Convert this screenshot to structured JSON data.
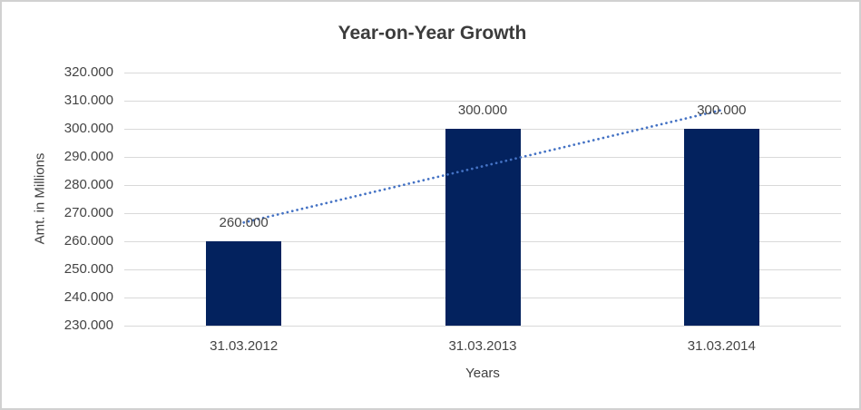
{
  "chart_data": {
    "type": "bar",
    "title": "Year-on-Year Growth",
    "xlabel": "Years",
    "ylabel": "Amt. in Millions",
    "categories": [
      "31.03.2012",
      "31.03.2013",
      "31.03.2014"
    ],
    "values": [
      260000,
      300000,
      300000
    ],
    "data_labels": [
      "260.000",
      "300.000",
      "300.000"
    ],
    "ylim": [
      230000,
      320000
    ],
    "ytick_step": 10000,
    "ytick_labels": [
      "230.000",
      "240.000",
      "250.000",
      "260.000",
      "270.000",
      "280.000",
      "290.000",
      "300.000",
      "310.000",
      "320.000"
    ],
    "grid": true,
    "legend": false,
    "trendline": {
      "type": "linear",
      "style": "dotted",
      "endpoints_value": [
        266667,
        306667
      ]
    },
    "colors": {
      "bar": "#03225E",
      "trendline": "#4472C4",
      "gridline": "#D9D9D9",
      "axis_text": "#444444",
      "title_text": "#3C3C3C",
      "frame_border": "#D1D1D1",
      "background": "#FFFFFF"
    }
  }
}
